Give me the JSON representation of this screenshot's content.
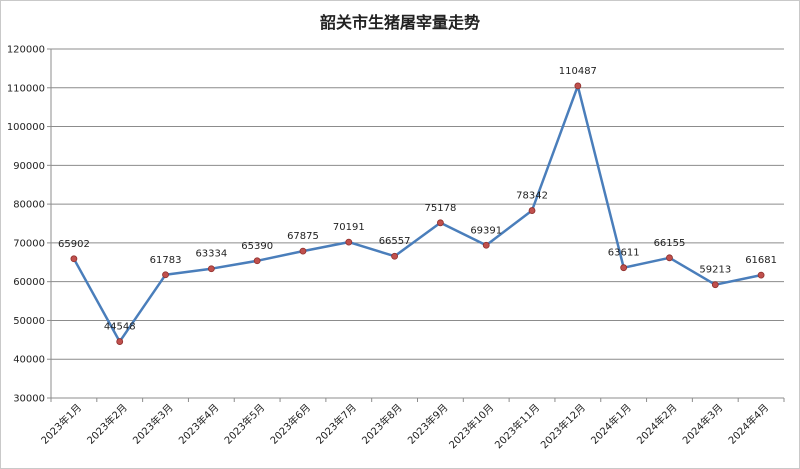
{
  "chart_data": {
    "type": "line",
    "title": "韶关市生猪屠宰量走势",
    "xlabel": "",
    "ylabel": "",
    "categories": [
      "2023年1月",
      "2023年2月",
      "2023年3月",
      "2023年4月",
      "2023年5月",
      "2023年6月",
      "2023年7月",
      "2023年8月",
      "2023年9月",
      "2023年10月",
      "2023年11月",
      "2023年12月",
      "2024年1月",
      "2024年2月",
      "2024年3月",
      "2024年4月"
    ],
    "series": [
      {
        "values": [
          65902,
          44548,
          61783,
          63334,
          65390,
          67875,
          70191,
          66557,
          75178,
          69391,
          78342,
          110487,
          63611,
          66155,
          59213,
          61681
        ]
      }
    ],
    "data_labels": [
      "65902",
      "44548",
      "61783",
      "63334",
      "65390",
      "67875",
      "70191",
      "66557",
      "75178",
      "69391",
      "78342",
      "110487",
      "63611",
      "66155",
      "59213",
      "61681"
    ],
    "ylim": [
      30000,
      120000
    ],
    "yticks": [
      "30000",
      "40000",
      "50000",
      "60000",
      "70000",
      "80000",
      "90000",
      "100000",
      "110000",
      "120000"
    ],
    "grid": "horizontal",
    "legend": "none",
    "colors": {
      "line": "#4a7ebb",
      "marker": "#c0504d",
      "grid": "#8c8c8c",
      "axis": "#8c8c8c"
    }
  }
}
